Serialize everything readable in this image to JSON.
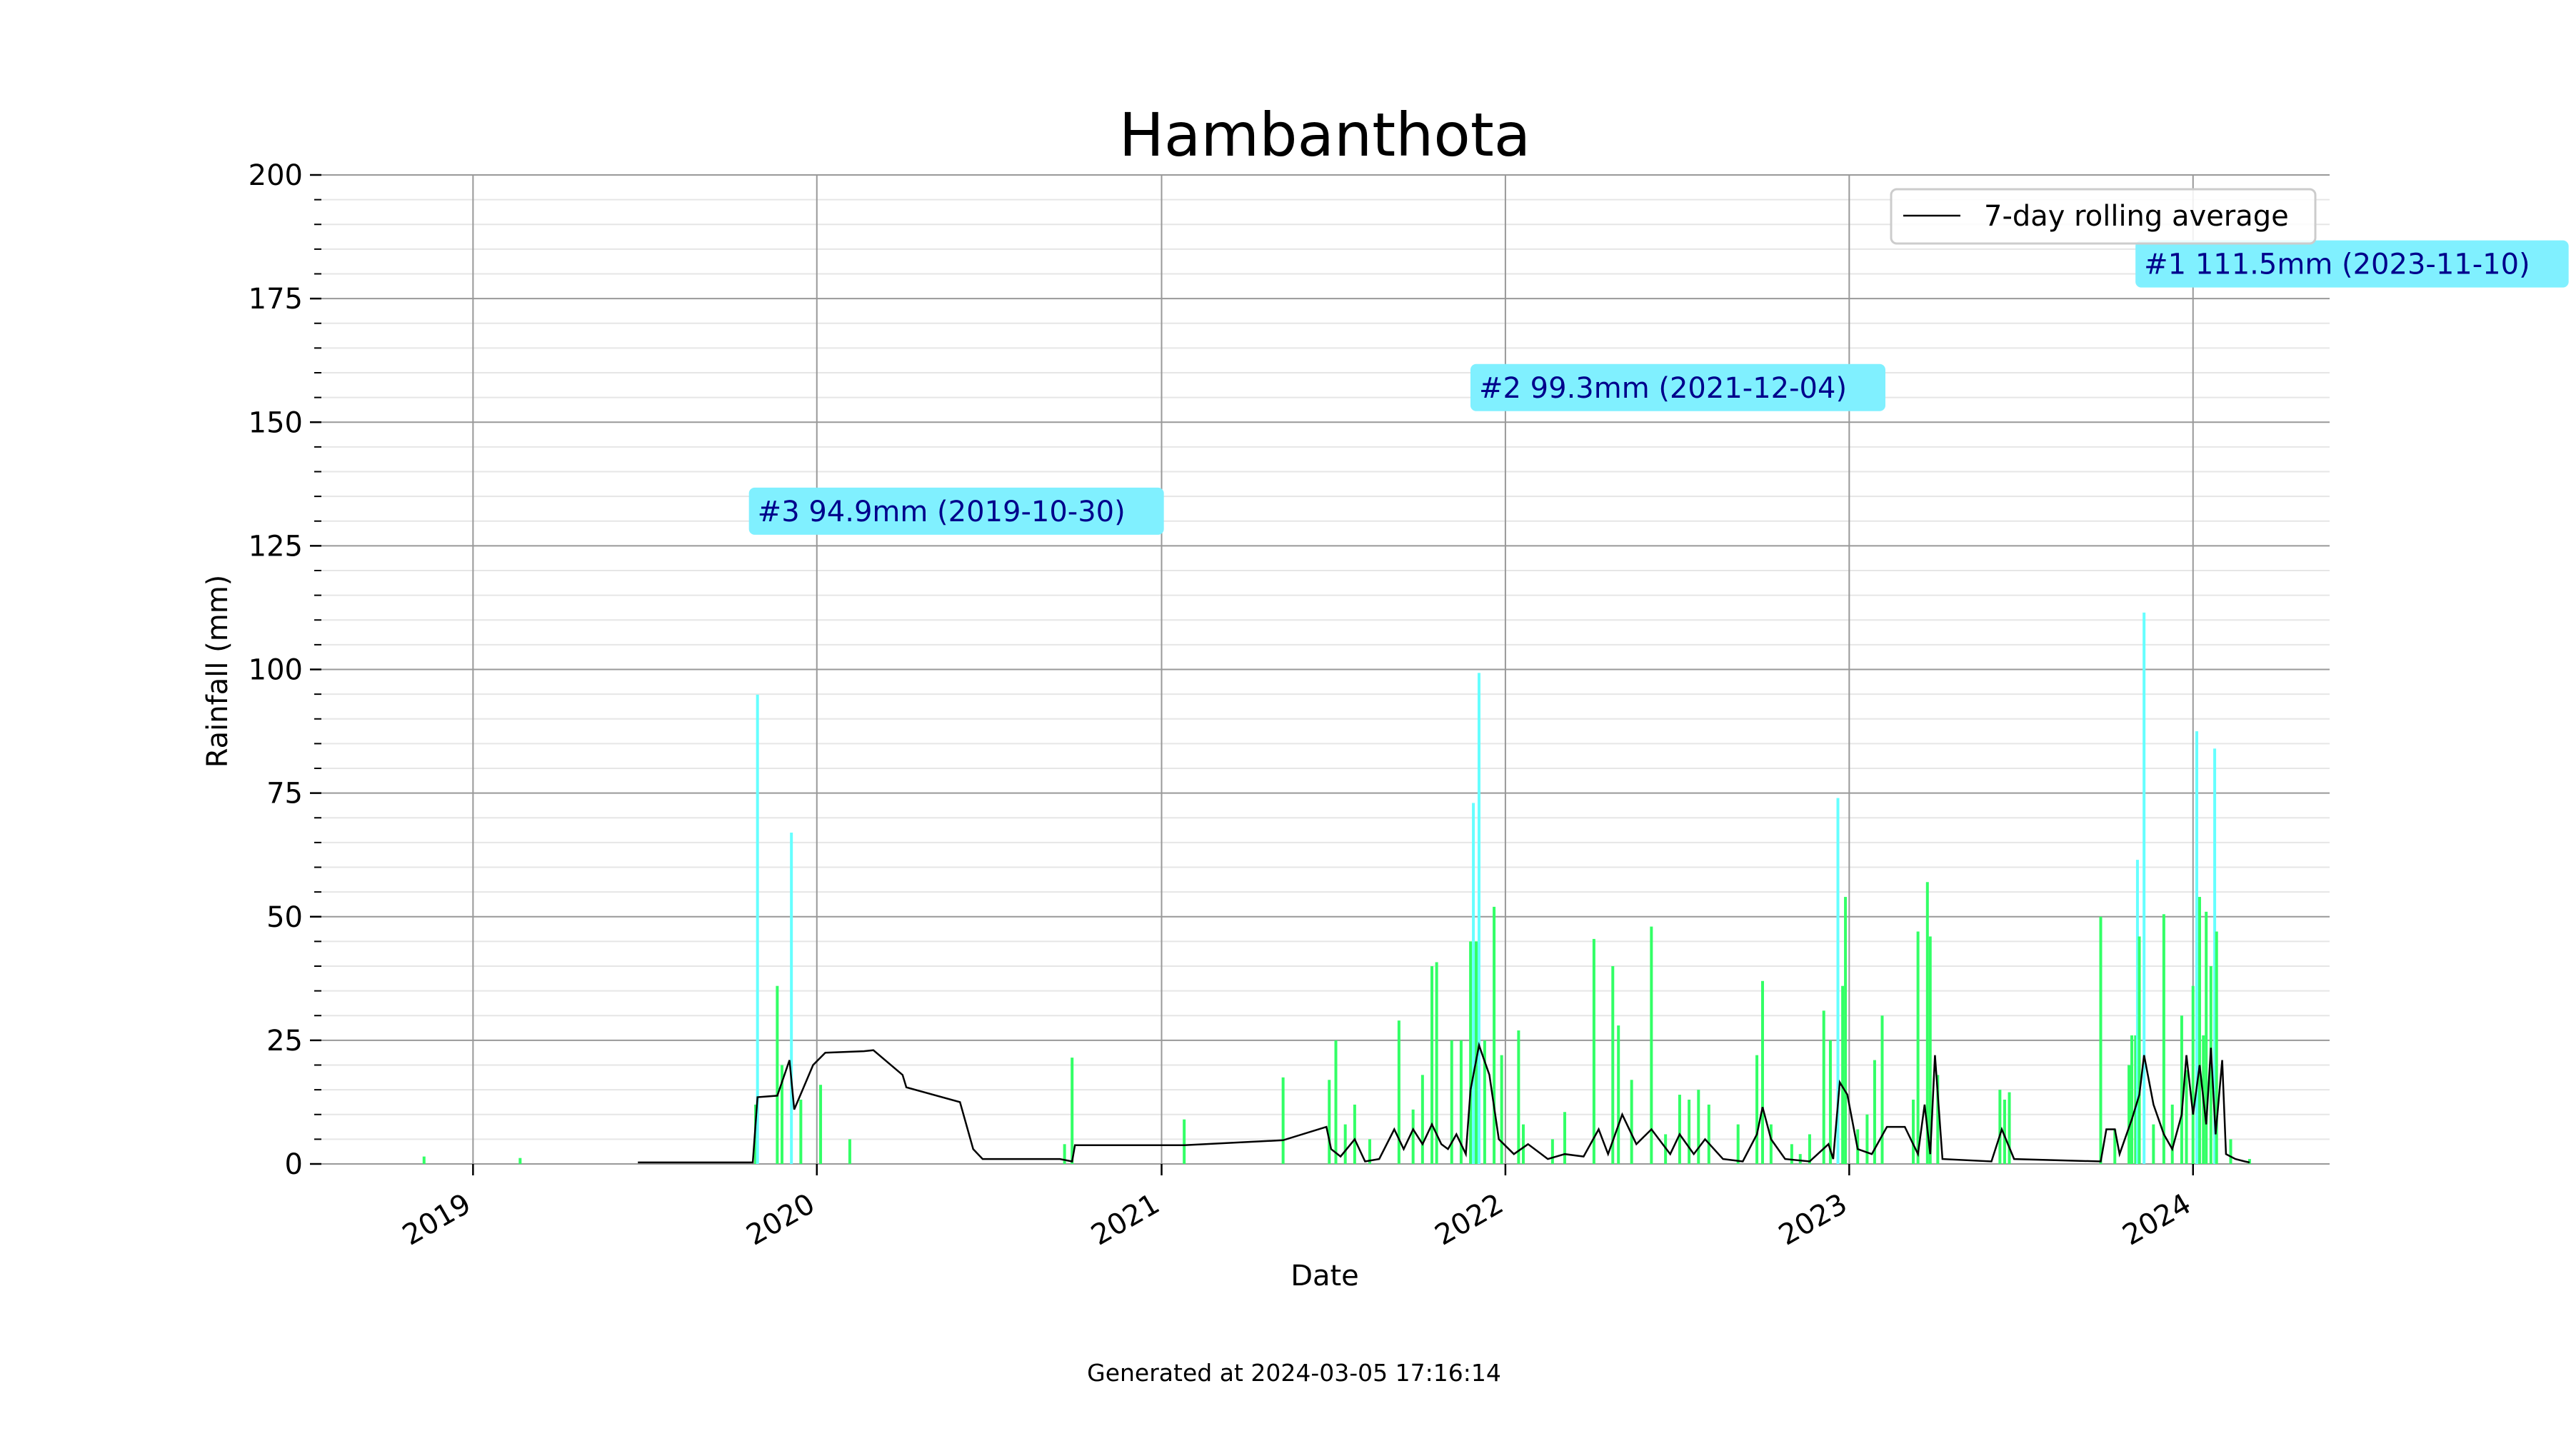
{
  "chart_data": {
    "type": "bar",
    "title": "Hambanthota",
    "xlabel": "Date",
    "ylabel": "Rainfall (mm)",
    "ylim": [
      0,
      200
    ],
    "xlim": [
      "2018-07-24",
      "2024-05-25"
    ],
    "y_ticks": [
      "0",
      "25",
      "50",
      "75",
      "100",
      "125",
      "150",
      "175",
      "200"
    ],
    "x_ticks": [
      {
        "label": "2019",
        "date": "2019-01-01"
      },
      {
        "label": "2020",
        "date": "2020-01-01"
      },
      {
        "label": "2021",
        "date": "2021-01-01"
      },
      {
        "label": "2022",
        "date": "2022-01-01"
      },
      {
        "label": "2023",
        "date": "2023-01-01"
      },
      {
        "label": "2024",
        "date": "2024-01-01"
      }
    ],
    "grid": true,
    "legend": {
      "position": "top-right",
      "entries": [
        "7-day rolling average"
      ]
    },
    "colors": {
      "bar": "#33ff66",
      "bar_top": "#66ffff",
      "line": "#000000",
      "annotation_bg": "#80f0ff",
      "annotation_text": "#00008b",
      "grid_major": "#999999",
      "grid_minor": "#e6e6e6"
    },
    "highlight_threshold": 60,
    "series": [
      {
        "kind": "bars",
        "points": [
          [
            "2018-11-10",
            1.5
          ],
          [
            "2019-02-20",
            1.2
          ],
          [
            "2019-10-28",
            12
          ],
          [
            "2019-10-30",
            94.9
          ],
          [
            "2019-11-20",
            36
          ],
          [
            "2019-11-25",
            20
          ],
          [
            "2019-12-05",
            67
          ],
          [
            "2019-12-15",
            13
          ],
          [
            "2020-01-05",
            16
          ],
          [
            "2020-02-05",
            5
          ],
          [
            "2020-09-20",
            4
          ],
          [
            "2020-09-28",
            21.5
          ],
          [
            "2021-01-25",
            9
          ],
          [
            "2021-05-10",
            17.5
          ],
          [
            "2021-06-28",
            17
          ],
          [
            "2021-07-05",
            25
          ],
          [
            "2021-07-15",
            8
          ],
          [
            "2021-07-25",
            12
          ],
          [
            "2021-08-10",
            5
          ],
          [
            "2021-09-10",
            29
          ],
          [
            "2021-09-25",
            11
          ],
          [
            "2021-10-05",
            18
          ],
          [
            "2021-10-15",
            40
          ],
          [
            "2021-10-20",
            40.8
          ],
          [
            "2021-11-05",
            25
          ],
          [
            "2021-11-15",
            25
          ],
          [
            "2021-11-25",
            45
          ],
          [
            "2021-11-28",
            73
          ],
          [
            "2021-12-01",
            45
          ],
          [
            "2021-12-04",
            99.3
          ],
          [
            "2021-12-10",
            25
          ],
          [
            "2021-12-20",
            52
          ],
          [
            "2021-12-28",
            22
          ],
          [
            "2022-01-15",
            27
          ],
          [
            "2022-01-20",
            8
          ],
          [
            "2022-02-20",
            5
          ],
          [
            "2022-03-05",
            10.5
          ],
          [
            "2022-04-05",
            45.5
          ],
          [
            "2022-04-25",
            40
          ],
          [
            "2022-05-01",
            28
          ],
          [
            "2022-05-15",
            17
          ],
          [
            "2022-06-05",
            48
          ],
          [
            "2022-06-20",
            6
          ],
          [
            "2022-07-05",
            14
          ],
          [
            "2022-07-15",
            13
          ],
          [
            "2022-07-25",
            15
          ],
          [
            "2022-08-05",
            12
          ],
          [
            "2022-09-05",
            8
          ],
          [
            "2022-09-25",
            22
          ],
          [
            "2022-10-01",
            37
          ],
          [
            "2022-10-10",
            8
          ],
          [
            "2022-11-01",
            4
          ],
          [
            "2022-11-10",
            2
          ],
          [
            "2022-11-20",
            6
          ],
          [
            "2022-12-05",
            31
          ],
          [
            "2022-12-12",
            25
          ],
          [
            "2022-12-20",
            74
          ],
          [
            "2022-12-25",
            36
          ],
          [
            "2022-12-28",
            54
          ],
          [
            "2023-01-10",
            7
          ],
          [
            "2023-01-20",
            10
          ],
          [
            "2023-01-28",
            21
          ],
          [
            "2023-02-05",
            30
          ],
          [
            "2023-03-10",
            13
          ],
          [
            "2023-03-15",
            47
          ],
          [
            "2023-03-25",
            57
          ],
          [
            "2023-03-28",
            46
          ],
          [
            "2023-04-05",
            18
          ],
          [
            "2023-06-10",
            15
          ],
          [
            "2023-06-15",
            13
          ],
          [
            "2023-06-20",
            14.5
          ],
          [
            "2023-09-25",
            50
          ],
          [
            "2023-10-10",
            7
          ],
          [
            "2023-10-25",
            20
          ],
          [
            "2023-10-28",
            26
          ],
          [
            "2023-11-01",
            26
          ],
          [
            "2023-11-03",
            61.5
          ],
          [
            "2023-11-05",
            46
          ],
          [
            "2023-11-10",
            111.5
          ],
          [
            "2023-11-20",
            8
          ],
          [
            "2023-12-01",
            50.5
          ],
          [
            "2023-12-10",
            12
          ],
          [
            "2023-12-20",
            30
          ],
          [
            "2023-12-25",
            19
          ],
          [
            "2024-01-01",
            36
          ],
          [
            "2024-01-05",
            87.5
          ],
          [
            "2024-01-08",
            54
          ],
          [
            "2024-01-12",
            26
          ],
          [
            "2024-01-15",
            51
          ],
          [
            "2024-01-20",
            40
          ],
          [
            "2024-01-24",
            84
          ],
          [
            "2024-01-26",
            47
          ],
          [
            "2024-02-10",
            5
          ],
          [
            "2024-03-01",
            1
          ]
        ]
      },
      {
        "kind": "line",
        "name": "7-day rolling average",
        "points": [
          [
            "2019-06-25",
            0.3
          ],
          [
            "2019-10-25",
            0.3
          ],
          [
            "2019-10-30",
            13.5
          ],
          [
            "2019-11-20",
            13.8
          ],
          [
            "2019-12-03",
            21
          ],
          [
            "2019-12-08",
            11
          ],
          [
            "2019-12-28",
            20
          ],
          [
            "2020-01-10",
            22.5
          ],
          [
            "2020-02-20",
            22.8
          ],
          [
            "2020-03-01",
            23
          ],
          [
            "2020-04-01",
            18
          ],
          [
            "2020-04-05",
            15.5
          ],
          [
            "2020-06-01",
            12.5
          ],
          [
            "2020-06-15",
            3
          ],
          [
            "2020-06-25",
            1
          ],
          [
            "2020-09-15",
            1
          ],
          [
            "2020-09-28",
            0.5
          ],
          [
            "2020-10-01",
            3.8
          ],
          [
            "2021-01-25",
            3.8
          ],
          [
            "2021-05-10",
            4.8
          ],
          [
            "2021-06-25",
            7.5
          ],
          [
            "2021-06-30",
            3
          ],
          [
            "2021-07-10",
            1.5
          ],
          [
            "2021-07-25",
            5
          ],
          [
            "2021-08-05",
            0.5
          ],
          [
            "2021-08-20",
            1
          ],
          [
            "2021-09-05",
            7
          ],
          [
            "2021-09-15",
            3
          ],
          [
            "2021-09-25",
            7
          ],
          [
            "2021-10-05",
            4
          ],
          [
            "2021-10-15",
            8
          ],
          [
            "2021-10-25",
            4
          ],
          [
            "2021-11-01",
            3
          ],
          [
            "2021-11-10",
            6
          ],
          [
            "2021-11-20",
            2
          ],
          [
            "2021-11-25",
            15
          ],
          [
            "2021-12-04",
            24
          ],
          [
            "2021-12-15",
            18
          ],
          [
            "2021-12-25",
            5
          ],
          [
            "2022-01-10",
            2
          ],
          [
            "2022-01-25",
            4
          ],
          [
            "2022-02-15",
            1
          ],
          [
            "2022-03-05",
            2
          ],
          [
            "2022-03-25",
            1.5
          ],
          [
            "2022-04-10",
            7
          ],
          [
            "2022-04-20",
            2
          ],
          [
            "2022-05-05",
            10
          ],
          [
            "2022-05-20",
            4
          ],
          [
            "2022-06-05",
            7
          ],
          [
            "2022-06-25",
            2
          ],
          [
            "2022-07-05",
            6
          ],
          [
            "2022-07-20",
            2
          ],
          [
            "2022-08-01",
            5
          ],
          [
            "2022-08-20",
            1
          ],
          [
            "2022-09-10",
            0.5
          ],
          [
            "2022-09-25",
            6
          ],
          [
            "2022-10-01",
            11.5
          ],
          [
            "2022-10-10",
            5
          ],
          [
            "2022-10-25",
            1
          ],
          [
            "2022-11-20",
            0.5
          ],
          [
            "2022-12-10",
            4
          ],
          [
            "2022-12-15",
            1
          ],
          [
            "2022-12-22",
            16.5
          ],
          [
            "2022-12-30",
            14
          ],
          [
            "2023-01-10",
            3
          ],
          [
            "2023-01-25",
            2
          ],
          [
            "2023-02-10",
            7.5
          ],
          [
            "2023-03-01",
            7.5
          ],
          [
            "2023-03-15",
            2
          ],
          [
            "2023-03-22",
            12
          ],
          [
            "2023-03-28",
            2
          ],
          [
            "2023-04-02",
            22
          ],
          [
            "2023-04-10",
            1
          ],
          [
            "2023-06-01",
            0.5
          ],
          [
            "2023-06-12",
            7
          ],
          [
            "2023-06-25",
            1
          ],
          [
            "2023-09-25",
            0.5
          ],
          [
            "2023-10-01",
            7
          ],
          [
            "2023-10-10",
            7
          ],
          [
            "2023-10-15",
            2
          ],
          [
            "2023-10-28",
            9
          ],
          [
            "2023-11-05",
            14
          ],
          [
            "2023-11-10",
            22
          ],
          [
            "2023-11-20",
            12
          ],
          [
            "2023-12-01",
            6
          ],
          [
            "2023-12-10",
            3
          ],
          [
            "2023-12-20",
            10
          ],
          [
            "2023-12-25",
            22
          ],
          [
            "2024-01-01",
            10
          ],
          [
            "2024-01-08",
            20
          ],
          [
            "2024-01-15",
            8
          ],
          [
            "2024-01-20",
            23.5
          ],
          [
            "2024-01-25",
            6
          ],
          [
            "2024-02-01",
            21
          ],
          [
            "2024-02-05",
            2
          ],
          [
            "2024-02-15",
            1
          ],
          [
            "2024-02-25",
            0.5
          ],
          [
            "2024-03-01",
            0.3
          ]
        ]
      }
    ],
    "annotations": [
      {
        "text": "#1 111.5mm (2023-11-10)",
        "x": "2023-11-10",
        "y": 111.5,
        "label_y": 182
      },
      {
        "text": "#2 99.3mm (2021-12-04)",
        "x": "2021-12-04",
        "y": 99.3,
        "label_y": 157
      },
      {
        "text": "#3 94.9mm (2019-10-30)",
        "x": "2019-10-30",
        "y": 94.9,
        "label_y": 132
      }
    ]
  },
  "footer": "Generated at 2024-03-05 17:16:14"
}
